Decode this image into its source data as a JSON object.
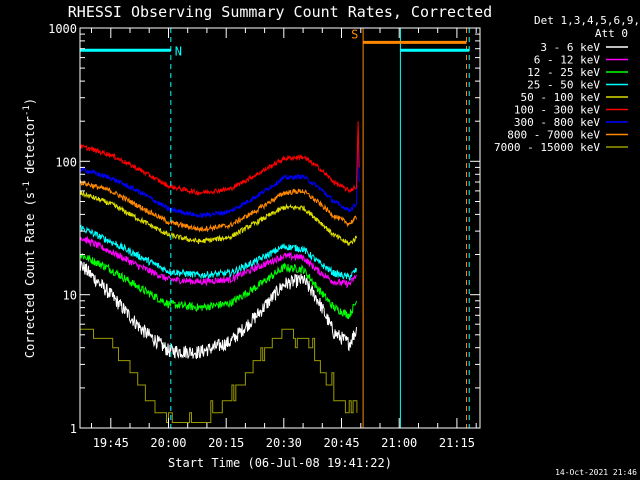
{
  "chart_data": {
    "type": "line",
    "title": "RHESSI Observing Summary Count Rates, Corrected",
    "xlabel": "Start Time (06-Jul-08 19:41:22)",
    "ylabel": "Corrected Count Rate (s",
    "ylabel_sup1": "-1",
    "ylabel_mid": " detector",
    "ylabel_sup2": "-1",
    "ylabel_end": ")",
    "yscale": "log",
    "ylim": [
      1,
      1000
    ],
    "xlim_minutes": [
      -4,
      100
    ],
    "y_ticks": [
      {
        "value": 1,
        "label": "1"
      },
      {
        "value": 10,
        "label": "10"
      },
      {
        "value": 100,
        "label": "100"
      },
      {
        "value": 1000,
        "label": "1000"
      }
    ],
    "x_ticks": [
      {
        "minute": 4,
        "label": "19:45"
      },
      {
        "minute": 19,
        "label": "20:00"
      },
      {
        "minute": 34,
        "label": "20:15"
      },
      {
        "minute": 49,
        "label": "20:30"
      },
      {
        "minute": 64,
        "label": "20:45"
      },
      {
        "minute": 79,
        "label": "21:00"
      },
      {
        "minute": 94,
        "label": "21:15"
      }
    ],
    "x_units_note": "minutes after 19:41:00",
    "legend_header": [
      "Det 1,3,4,5,6,9,",
      "Att 0"
    ],
    "series": [
      {
        "name": "3 - 6 keV",
        "color": "#ffffff",
        "anchors": [
          [
            -4,
            17
          ],
          [
            4,
            10
          ],
          [
            12,
            5.5
          ],
          [
            19,
            3.8
          ],
          [
            27,
            3.7
          ],
          [
            35,
            4.4
          ],
          [
            42,
            7
          ],
          [
            49,
            12
          ],
          [
            54,
            13
          ],
          [
            58,
            9
          ],
          [
            62,
            5.2
          ],
          [
            66,
            4.3
          ],
          [
            68,
            5.5
          ]
        ],
        "noise": 0.12
      },
      {
        "name": "6 - 12 keV",
        "color": "#ff00ff",
        "anchors": [
          [
            -4,
            27
          ],
          [
            4,
            21
          ],
          [
            12,
            16
          ],
          [
            19,
            13
          ],
          [
            27,
            12.5
          ],
          [
            35,
            13
          ],
          [
            42,
            16
          ],
          [
            49,
            19.5
          ],
          [
            54,
            19
          ],
          [
            58,
            15
          ],
          [
            62,
            12.5
          ],
          [
            66,
            12
          ],
          [
            68,
            14
          ]
        ],
        "noise": 0.06
      },
      {
        "name": "12 - 25 keV",
        "color": "#00ff00",
        "anchors": [
          [
            -4,
            20
          ],
          [
            4,
            15.5
          ],
          [
            12,
            11
          ],
          [
            19,
            8.5
          ],
          [
            27,
            8
          ],
          [
            35,
            8.6
          ],
          [
            42,
            11.5
          ],
          [
            49,
            16
          ],
          [
            54,
            15.5
          ],
          [
            58,
            11
          ],
          [
            62,
            8
          ],
          [
            66,
            7
          ],
          [
            68,
            9
          ]
        ],
        "noise": 0.07
      },
      {
        "name": "25 - 50 keV",
        "color": "#00ffff",
        "anchors": [
          [
            -4,
            32
          ],
          [
            4,
            25
          ],
          [
            12,
            19
          ],
          [
            19,
            15
          ],
          [
            27,
            14
          ],
          [
            35,
            14.5
          ],
          [
            42,
            18
          ],
          [
            49,
            23
          ],
          [
            54,
            22
          ],
          [
            58,
            17.5
          ],
          [
            62,
            14.5
          ],
          [
            66,
            13.5
          ],
          [
            68,
            15.5
          ]
        ],
        "noise": 0.06
      },
      {
        "name": "50 - 100 keV",
        "color": "#dcdc00",
        "anchors": [
          [
            -4,
            58
          ],
          [
            4,
            48
          ],
          [
            12,
            36
          ],
          [
            19,
            28
          ],
          [
            27,
            25
          ],
          [
            35,
            27
          ],
          [
            42,
            35
          ],
          [
            49,
            45
          ],
          [
            54,
            45
          ],
          [
            58,
            36
          ],
          [
            62,
            28
          ],
          [
            66,
            24
          ],
          [
            68,
            27
          ]
        ],
        "noise": 0.045
      },
      {
        "name": "100 - 300 keV",
        "color": "#ff0000",
        "anchors": [
          [
            -4,
            130
          ],
          [
            4,
            112
          ],
          [
            12,
            85
          ],
          [
            19,
            65
          ],
          [
            27,
            58
          ],
          [
            35,
            62
          ],
          [
            42,
            80
          ],
          [
            49,
            105
          ],
          [
            54,
            108
          ],
          [
            58,
            90
          ],
          [
            62,
            70
          ],
          [
            66,
            60
          ],
          [
            68,
            65
          ]
        ],
        "noise": 0.04
      },
      {
        "name": "300 - 800 keV",
        "color": "#0000ff",
        "anchors": [
          [
            -4,
            88
          ],
          [
            4,
            75
          ],
          [
            12,
            58
          ],
          [
            19,
            44
          ],
          [
            27,
            39
          ],
          [
            35,
            42
          ],
          [
            42,
            55
          ],
          [
            49,
            75
          ],
          [
            54,
            77
          ],
          [
            58,
            64
          ],
          [
            62,
            50
          ],
          [
            66,
            43
          ],
          [
            68,
            48
          ]
        ],
        "noise": 0.04
      },
      {
        "name": "800 - 7000 keV",
        "color": "#ff8800",
        "anchors": [
          [
            -4,
            70
          ],
          [
            4,
            60
          ],
          [
            12,
            45
          ],
          [
            19,
            35
          ],
          [
            27,
            31
          ],
          [
            35,
            33
          ],
          [
            42,
            43
          ],
          [
            49,
            58
          ],
          [
            54,
            60
          ],
          [
            58,
            49
          ],
          [
            62,
            39
          ],
          [
            66,
            34
          ],
          [
            68,
            38
          ]
        ],
        "noise": 0.045
      },
      {
        "name": "7000 - 15000 keV",
        "color": "#9a9a00",
        "anchors": [
          [
            -4,
            5.5
          ],
          [
            4,
            4.5
          ],
          [
            10,
            2.5
          ],
          [
            14,
            1.6
          ],
          [
            18,
            1.2
          ],
          [
            24,
            1.1
          ],
          [
            30,
            1.2
          ],
          [
            36,
            1.8
          ],
          [
            42,
            3.2
          ],
          [
            48,
            5.2
          ],
          [
            54,
            5
          ],
          [
            58,
            3
          ],
          [
            62,
            1.8
          ],
          [
            66,
            1.3
          ],
          [
            68,
            1.5
          ]
        ],
        "noise": 0.0,
        "step": true
      }
    ],
    "annotations": [
      {
        "label": "N",
        "color": "#00ffff",
        "start_minute": -4,
        "end_minute": 19.6,
        "level": 680,
        "type": "bar"
      },
      {
        "label": "S",
        "color": "#ff8800",
        "start_minute": 69.6,
        "end_minute": 96.5,
        "level": 780,
        "type": "bar"
      },
      {
        "label": "",
        "color": "#00ffff",
        "start_minute": 79.3,
        "end_minute": 97.2,
        "level": 680,
        "type": "bar"
      }
    ],
    "vlines": [
      {
        "minute": -4,
        "color": "#00ffff",
        "style": "solid"
      },
      {
        "minute": 19.6,
        "color": "#00ffff",
        "style": "dashed"
      },
      {
        "minute": 69.6,
        "color": "#ff8800",
        "style": "solid"
      },
      {
        "minute": 79.3,
        "color": "#00ffff",
        "style": "solid"
      },
      {
        "minute": 96.5,
        "color": "#ff8800",
        "style": "dashed"
      },
      {
        "minute": 97.2,
        "color": "#00ffff",
        "style": "dashed"
      }
    ],
    "timestamp": "14-Oct-2021 21:46"
  }
}
